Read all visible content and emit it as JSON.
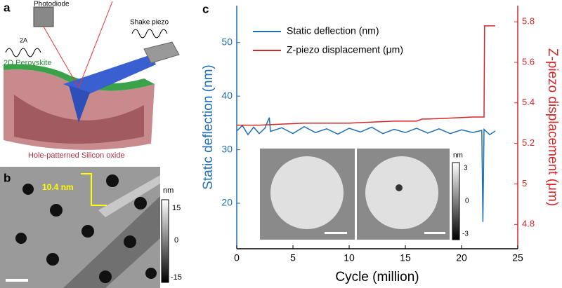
{
  "panel_a": {
    "letter": "a",
    "photodiode": "Photodiode",
    "shake_piezo": "Shake piezo",
    "amplitude": "2A",
    "top_layer": "2D Perovskite",
    "substrate": "Hole-patterned Silicon oxide"
  },
  "panel_b": {
    "letter": "b",
    "step_height": "10.4 nm",
    "scale_unit": "nm",
    "scale_labels": [
      "15",
      "0",
      "-15"
    ]
  },
  "inset": {
    "scale_unit": "nm",
    "scale_labels": [
      "3",
      "0",
      "-3"
    ]
  },
  "chart_data": {
    "type": "line",
    "letter": "c",
    "x_label": "Cycle (million)",
    "y_label": "Static deflection (nm)",
    "y2_label": "Z-piezo displacement (μm)",
    "xlim": [
      0,
      25
    ],
    "xticks": [
      0,
      5,
      10,
      15,
      20,
      25
    ],
    "ylim": [
      11.5,
      56.9
    ],
    "yticks": [
      20,
      30,
      40,
      50
    ],
    "y2lim": [
      4.68,
      5.88
    ],
    "y2ticks": [
      4.8,
      5.0,
      5.2,
      5.4,
      5.6,
      5.8
    ],
    "legend": "upper left",
    "series": [
      {
        "name": "Static deflection (nm)",
        "color": "#1f6fb5",
        "x": [
          0,
          0.5,
          1,
          1.5,
          2,
          2.5,
          2.9,
          3,
          4,
          5,
          6,
          7,
          8,
          9,
          10,
          11,
          12,
          13,
          14,
          15,
          16,
          17,
          18,
          19,
          20,
          21,
          21.8,
          21.9,
          22,
          22.5,
          23
        ],
        "values": [
          33.5,
          34.5,
          32.8,
          34.2,
          33.0,
          34.0,
          36.0,
          33.4,
          34.1,
          33.0,
          34.3,
          33.2,
          33.9,
          32.9,
          34.0,
          33.3,
          34.2,
          33.0,
          33.8,
          33.2,
          34.0,
          33.1,
          33.9,
          33.0,
          33.7,
          33.2,
          33.6,
          16.5,
          33.8,
          32.8,
          33.5
        ]
      },
      {
        "name": "Z-piezo displacement (μm)",
        "color": "#d62728",
        "axis": "y2",
        "x": [
          0,
          2,
          4,
          6,
          8,
          10,
          12,
          14,
          16,
          16.5,
          17,
          19,
          21,
          22,
          22.05,
          23
        ],
        "values": [
          5.29,
          5.29,
          5.295,
          5.3,
          5.3,
          5.3,
          5.305,
          5.31,
          5.31,
          5.32,
          5.32,
          5.325,
          5.33,
          5.33,
          5.78,
          5.78
        ]
      }
    ]
  }
}
